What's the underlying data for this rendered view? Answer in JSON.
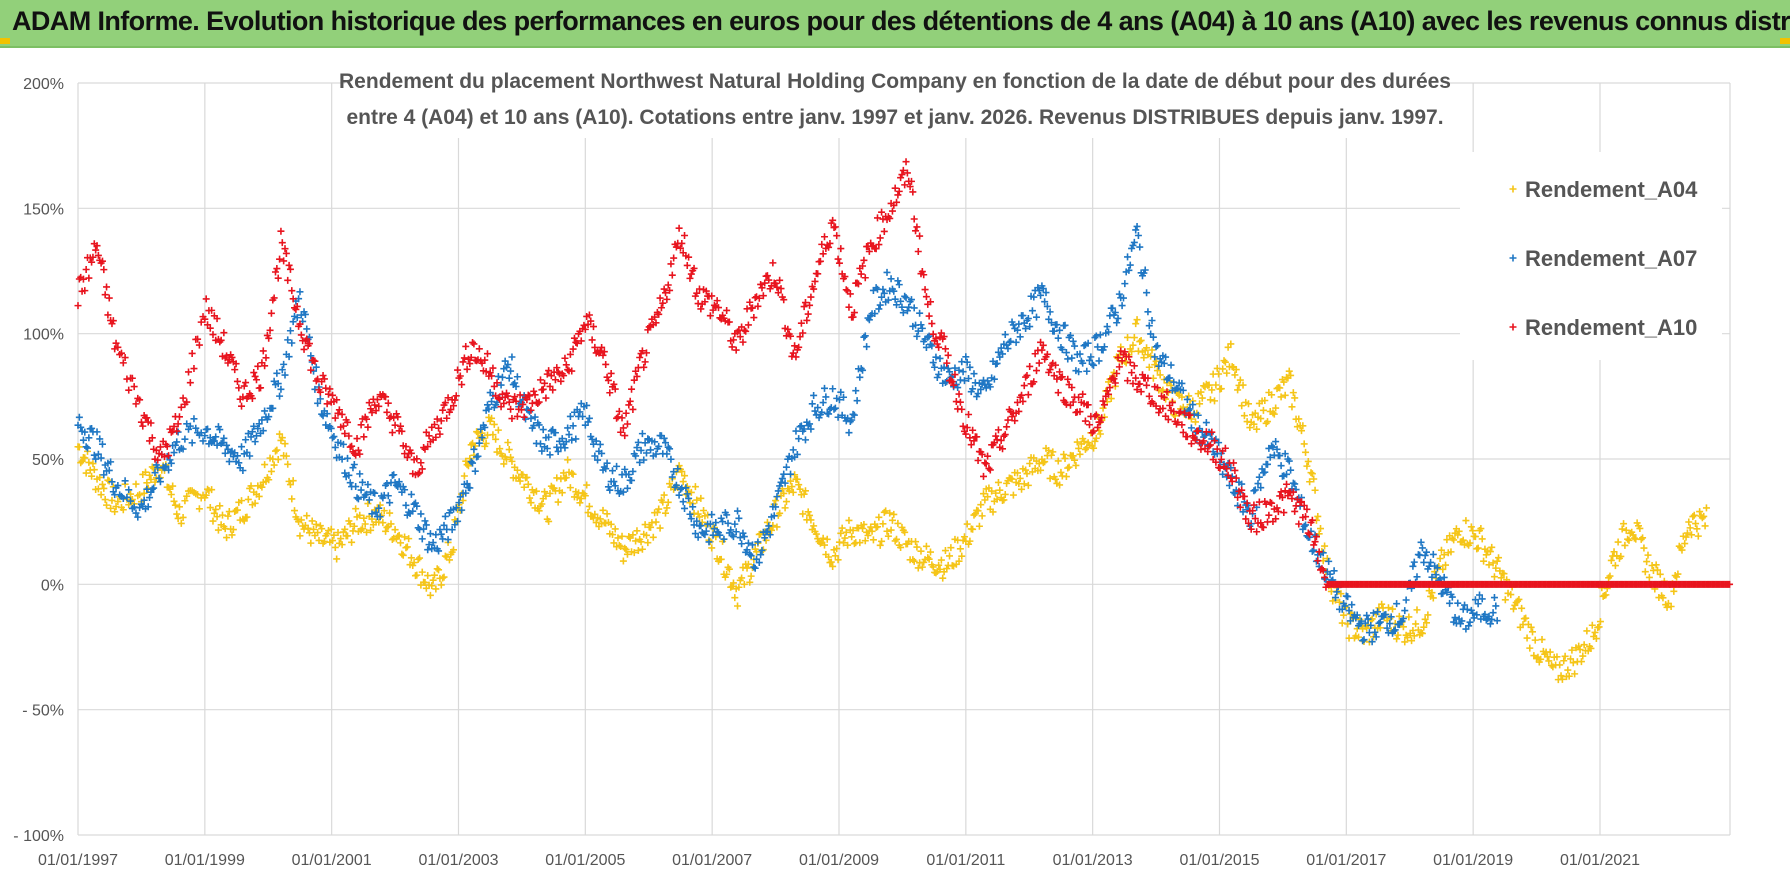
{
  "banner": {
    "title": "ADAM Informe. Evolution historique des performances en euros pour des détentions de 4 ans (A04) à 10 ans (A10) avec les revenus connus distribués"
  },
  "colors": {
    "A04": "#f5c518",
    "A07": "#1f77c4",
    "A10": "#e8141e",
    "banner": "#92d07a",
    "grid": "#d9d9d9"
  },
  "chart_data": {
    "type": "scatter",
    "title_line1": "Rendement du placement Northwest Natural Holding Company en fonction de la date de début pour des durées",
    "title_line2": "entre 4 (A04) et 10 ans (A10).  Cotations entre janv. 1997 et janv. 2026. Revenus DISTRIBUES  depuis janv. 1997.",
    "xlabel": "",
    "ylabel": "",
    "xlim": [
      1997,
      2023.05
    ],
    "ylim": [
      -100,
      200
    ],
    "grid": true,
    "legend_position": "right",
    "x_ticks": [
      {
        "year": 1997,
        "label": "01/01/1997"
      },
      {
        "year": 1999,
        "label": "01/01/1999"
      },
      {
        "year": 2001,
        "label": "01/01/2001"
      },
      {
        "year": 2003,
        "label": "01/01/2003"
      },
      {
        "year": 2005,
        "label": "01/01/2005"
      },
      {
        "year": 2007,
        "label": "01/01/2007"
      },
      {
        "year": 2009,
        "label": "01/01/2009"
      },
      {
        "year": 2011,
        "label": "01/01/2011"
      },
      {
        "year": 2013,
        "label": "01/01/2013"
      },
      {
        "year": 2015,
        "label": "01/01/2015"
      },
      {
        "year": 2017,
        "label": "01/01/2017"
      },
      {
        "year": 2019,
        "label": "01/01/2019"
      },
      {
        "year": 2021,
        "label": "01/01/2021"
      }
    ],
    "y_ticks": [
      {
        "value": 200,
        "label": "200%"
      },
      {
        "value": 150,
        "label": "150%"
      },
      {
        "value": 100,
        "label": "100%"
      },
      {
        "value": 50,
        "label": "50%"
      },
      {
        "value": 0,
        "label": "0%"
      },
      {
        "value": -50,
        "label": "- 50%"
      },
      {
        "value": -100,
        "label": "- 100%"
      }
    ],
    "series": [
      {
        "name": "Rendement_A04",
        "color": "#f5c518",
        "x": [
          1997.0,
          1997.3,
          1997.6,
          1998.0,
          1998.3,
          1998.6,
          1999.0,
          1999.3,
          1999.6,
          1999.9,
          2000.2,
          2000.5,
          2000.8,
          2001.1,
          2001.4,
          2001.7,
          2002.0,
          2002.3,
          2002.6,
          2002.9,
          2003.2,
          2003.5,
          2003.8,
          2004.1,
          2004.4,
          2004.7,
          2005.0,
          2005.3,
          2005.6,
          2005.9,
          2006.2,
          2006.5,
          2006.8,
          2007.1,
          2007.4,
          2007.7,
          2008.0,
          2008.3,
          2008.6,
          2008.9,
          2009.2,
          2009.5,
          2009.8,
          2010.1,
          2010.4,
          2010.7,
          2011.0,
          2011.3,
          2011.6,
          2011.9,
          2012.2,
          2012.5,
          2012.8,
          2013.1,
          2013.4,
          2013.7,
          2014.0,
          2014.3,
          2014.6,
          2014.9,
          2015.2,
          2015.5,
          2015.8,
          2016.1,
          2016.4,
          2016.7,
          2017.0,
          2017.3,
          2017.6,
          2017.9,
          2018.2,
          2018.5,
          2018.8,
          2019.1,
          2019.4,
          2019.7,
          2020.0,
          2020.3,
          2020.6,
          2020.9,
          2021.2,
          2021.5,
          2021.8,
          2022.1,
          2022.4
        ],
        "y": [
          55,
          42,
          32,
          38,
          48,
          28,
          38,
          22,
          30,
          42,
          58,
          25,
          18,
          15,
          25,
          28,
          22,
          10,
          -3,
          15,
          55,
          62,
          50,
          40,
          30,
          45,
          35,
          25,
          14,
          20,
          28,
          45,
          30,
          15,
          -3,
          12,
          28,
          40,
          25,
          12,
          22,
          18,
          25,
          15,
          10,
          8,
          18,
          32,
          38,
          42,
          50,
          45,
          55,
          62,
          88,
          100,
          85,
          72,
          70,
          78,
          92,
          62,
          72,
          80,
          50,
          5,
          -15,
          -20,
          -12,
          -18,
          -15,
          8,
          22,
          18,
          5,
          -10,
          -25,
          -35,
          -30,
          -20,
          10,
          25,
          5,
          -5,
          25
        ]
      },
      {
        "name": "Rendement_A07",
        "color": "#1f77c4",
        "x": [
          1997.0,
          1997.3,
          1997.6,
          1998.0,
          1998.3,
          1998.6,
          1999.0,
          1999.3,
          1999.6,
          1999.9,
          2000.2,
          2000.5,
          2000.8,
          2001.1,
          2001.4,
          2001.7,
          2002.0,
          2002.3,
          2002.6,
          2002.9,
          2003.2,
          2003.5,
          2003.8,
          2004.1,
          2004.4,
          2004.7,
          2005.0,
          2005.3,
          2005.6,
          2005.9,
          2006.2,
          2006.5,
          2006.8,
          2007.1,
          2007.4,
          2007.7,
          2008.0,
          2008.3,
          2008.6,
          2008.9,
          2009.2,
          2009.5,
          2009.8,
          2010.1,
          2010.4,
          2010.7,
          2011.0,
          2011.3,
          2011.6,
          2011.9,
          2012.2,
          2012.5,
          2012.8,
          2013.1,
          2013.4,
          2013.7,
          2014.0,
          2014.3,
          2014.6,
          2014.9,
          2015.2,
          2015.5,
          2015.8,
          2016.1,
          2016.4,
          2016.7,
          2017.0,
          2017.3,
          2017.6,
          2017.9,
          2018.2,
          2018.5,
          2018.8,
          2019.1
        ],
        "y": [
          65,
          55,
          40,
          30,
          45,
          58,
          62,
          55,
          50,
          65,
          82,
          115,
          75,
          55,
          40,
          30,
          40,
          30,
          15,
          25,
          45,
          72,
          88,
          65,
          55,
          60,
          68,
          45,
          40,
          55,
          55,
          40,
          22,
          22,
          25,
          10,
          30,
          55,
          70,
          75,
          65,
          110,
          120,
          112,
          95,
          82,
          85,
          75,
          95,
          105,
          115,
          100,
          88,
          95,
          110,
          140,
          92,
          80,
          65,
          55,
          40,
          28,
          55,
          45,
          20,
          5,
          -10,
          -18,
          -15,
          -12,
          15,
          0,
          -15,
          -10
        ]
      },
      {
        "name": "Rendement_A10",
        "color": "#e8141e",
        "x": [
          1997.0,
          1997.3,
          1997.6,
          1998.0,
          1998.3,
          1998.6,
          1999.0,
          1999.3,
          1999.6,
          1999.9,
          2000.2,
          2000.5,
          2000.8,
          2001.1,
          2001.4,
          2001.7,
          2002.0,
          2002.3,
          2002.6,
          2002.9,
          2003.2,
          2003.5,
          2003.8,
          2004.1,
          2004.4,
          2004.7,
          2005.0,
          2005.3,
          2005.6,
          2005.9,
          2006.2,
          2006.5,
          2006.8,
          2007.1,
          2007.4,
          2007.7,
          2008.0,
          2008.3,
          2008.6,
          2008.9,
          2009.2,
          2009.5,
          2009.8,
          2010.1,
          2010.4,
          2010.7,
          2011.0,
          2011.3,
          2011.6,
          2011.9,
          2012.2,
          2012.5,
          2012.8,
          2013.1,
          2013.4,
          2013.7,
          2014.0,
          2014.3,
          2014.6,
          2014.9,
          2015.2,
          2015.5,
          2015.8,
          2016.1,
          2016.4,
          2016.7,
          2017.0,
          2017.3,
          2017.6,
          2017.9,
          2018.2,
          2018.5,
          2018.8,
          2019.1,
          2019.4,
          2019.7,
          2020.0,
          2020.3,
          2020.6,
          2020.9,
          2021.2,
          2021.5,
          2021.8,
          2022.1,
          2022.4,
          2022.7,
          2023.0
        ],
        "y": [
          115,
          135,
          95,
          70,
          50,
          65,
          110,
          95,
          75,
          85,
          135,
          105,
          80,
          70,
          55,
          75,
          65,
          45,
          60,
          75,
          95,
          85,
          70,
          72,
          80,
          85,
          105,
          90,
          60,
          90,
          110,
          140,
          115,
          110,
          95,
          115,
          125,
          90,
          120,
          145,
          110,
          135,
          150,
          165,
          110,
          90,
          65,
          45,
          60,
          75,
          95,
          80,
          72,
          62,
          90,
          82,
          75,
          68,
          60,
          55,
          45,
          25,
          30,
          35,
          25,
          0,
          0,
          0,
          0,
          0,
          0,
          0,
          0,
          0,
          0,
          0,
          0,
          0,
          0,
          0,
          0,
          0,
          0,
          0,
          0,
          0,
          0
        ]
      }
    ]
  }
}
